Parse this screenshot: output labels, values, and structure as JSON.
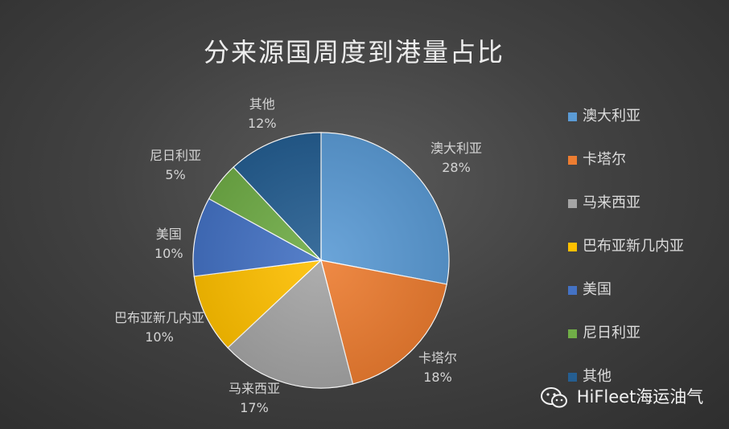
{
  "chart_data": {
    "type": "pie",
    "title": "分来源国周度到港量占比",
    "categories": [
      "澳大利亚",
      "卡塔尔",
      "马来西亚",
      "巴布亚新几内亚",
      "美国",
      "尼日利亚",
      "其他"
    ],
    "values": [
      28,
      18,
      17,
      10,
      10,
      5,
      12
    ],
    "value_labels": [
      "28%",
      "18%",
      "17%",
      "10%",
      "10%",
      "5%",
      "12%"
    ],
    "colors": [
      "#5b9bd5",
      "#ed7d31",
      "#a5a5a5",
      "#ffc000",
      "#4472c4",
      "#70ad47",
      "#255e91"
    ],
    "legend": "right"
  },
  "watermark": {
    "icon": "wechat-icon",
    "text": "HiFleet海运油气"
  }
}
